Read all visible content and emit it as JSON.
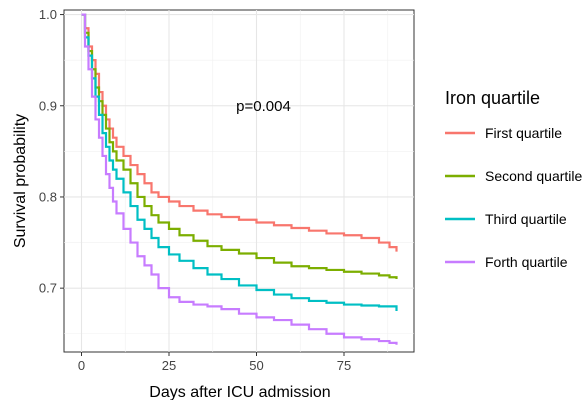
{
  "chart_data": {
    "type": "line",
    "step": true,
    "title": "",
    "xlabel": "Days after ICU admission",
    "ylabel": "Survival probability",
    "xlim": [
      -5,
      95
    ],
    "ylim": [
      0.63,
      1.005
    ],
    "x_ticks": [
      0,
      25,
      50,
      75
    ],
    "x_tick_labels": [
      "0",
      "25",
      "50",
      "75"
    ],
    "y_ticks": [
      0.7,
      0.8,
      0.9,
      1.0
    ],
    "y_tick_labels": [
      "0.7",
      "0.8",
      "0.9",
      "1.0"
    ],
    "grid": true,
    "annotation": "p=0.004",
    "annotation_at": {
      "x": 52,
      "y": 0.9
    },
    "legend": {
      "title": "Iron quartile",
      "position": "right"
    },
    "series": [
      {
        "name": "First quartile",
        "color": "#F8766D",
        "points": [
          [
            0,
            1.0
          ],
          [
            1,
            0.985
          ],
          [
            2,
            0.965
          ],
          [
            3,
            0.95
          ],
          [
            4,
            0.935
          ],
          [
            5,
            0.915
          ],
          [
            6,
            0.9
          ],
          [
            7,
            0.885
          ],
          [
            8,
            0.875
          ],
          [
            9,
            0.865
          ],
          [
            10,
            0.855
          ],
          [
            12,
            0.845
          ],
          [
            14,
            0.835
          ],
          [
            16,
            0.825
          ],
          [
            18,
            0.815
          ],
          [
            20,
            0.805
          ],
          [
            22,
            0.8
          ],
          [
            25,
            0.795
          ],
          [
            28,
            0.79
          ],
          [
            32,
            0.785
          ],
          [
            36,
            0.781
          ],
          [
            40,
            0.778
          ],
          [
            45,
            0.775
          ],
          [
            50,
            0.772
          ],
          [
            55,
            0.769
          ],
          [
            60,
            0.766
          ],
          [
            65,
            0.763
          ],
          [
            70,
            0.76
          ],
          [
            75,
            0.758
          ],
          [
            80,
            0.755
          ],
          [
            85,
            0.75
          ],
          [
            88,
            0.745
          ],
          [
            90,
            0.74
          ]
        ]
      },
      {
        "name": "Second quartile",
        "color": "#7CAE00",
        "points": [
          [
            0,
            1.0
          ],
          [
            1,
            0.98
          ],
          [
            2,
            0.96
          ],
          [
            3,
            0.94
          ],
          [
            4,
            0.92
          ],
          [
            5,
            0.905
          ],
          [
            6,
            0.89
          ],
          [
            7,
            0.875
          ],
          [
            8,
            0.86
          ],
          [
            9,
            0.85
          ],
          [
            10,
            0.84
          ],
          [
            12,
            0.83
          ],
          [
            14,
            0.815
          ],
          [
            16,
            0.8
          ],
          [
            18,
            0.79
          ],
          [
            20,
            0.78
          ],
          [
            22,
            0.772
          ],
          [
            25,
            0.765
          ],
          [
            28,
            0.758
          ],
          [
            32,
            0.752
          ],
          [
            36,
            0.746
          ],
          [
            40,
            0.742
          ],
          [
            45,
            0.738
          ],
          [
            50,
            0.733
          ],
          [
            55,
            0.728
          ],
          [
            60,
            0.724
          ],
          [
            65,
            0.722
          ],
          [
            70,
            0.72
          ],
          [
            75,
            0.718
          ],
          [
            80,
            0.716
          ],
          [
            85,
            0.714
          ],
          [
            88,
            0.712
          ],
          [
            90,
            0.71
          ]
        ]
      },
      {
        "name": "Third quartile",
        "color": "#00BFC4",
        "points": [
          [
            0,
            1.0
          ],
          [
            1,
            0.975
          ],
          [
            2,
            0.955
          ],
          [
            3,
            0.93
          ],
          [
            4,
            0.91
          ],
          [
            5,
            0.89
          ],
          [
            6,
            0.87
          ],
          [
            7,
            0.855
          ],
          [
            8,
            0.84
          ],
          [
            9,
            0.83
          ],
          [
            10,
            0.82
          ],
          [
            12,
            0.805
          ],
          [
            14,
            0.79
          ],
          [
            16,
            0.775
          ],
          [
            18,
            0.765
          ],
          [
            20,
            0.755
          ],
          [
            22,
            0.745
          ],
          [
            25,
            0.737
          ],
          [
            28,
            0.73
          ],
          [
            32,
            0.722
          ],
          [
            36,
            0.715
          ],
          [
            40,
            0.71
          ],
          [
            45,
            0.703
          ],
          [
            50,
            0.698
          ],
          [
            55,
            0.693
          ],
          [
            60,
            0.689
          ],
          [
            65,
            0.686
          ],
          [
            70,
            0.684
          ],
          [
            75,
            0.682
          ],
          [
            80,
            0.681
          ],
          [
            85,
            0.68
          ],
          [
            88,
            0.68
          ],
          [
            90,
            0.675
          ]
        ]
      },
      {
        "name": "Forth quartile",
        "color": "#C77CFF",
        "points": [
          [
            0,
            1.0
          ],
          [
            1,
            0.965
          ],
          [
            2,
            0.94
          ],
          [
            3,
            0.91
          ],
          [
            4,
            0.885
          ],
          [
            5,
            0.865
          ],
          [
            6,
            0.845
          ],
          [
            7,
            0.825
          ],
          [
            8,
            0.81
          ],
          [
            9,
            0.795
          ],
          [
            10,
            0.782
          ],
          [
            12,
            0.765
          ],
          [
            14,
            0.75
          ],
          [
            16,
            0.735
          ],
          [
            18,
            0.725
          ],
          [
            20,
            0.715
          ],
          [
            22,
            0.7
          ],
          [
            25,
            0.69
          ],
          [
            28,
            0.685
          ],
          [
            32,
            0.682
          ],
          [
            36,
            0.68
          ],
          [
            40,
            0.677
          ],
          [
            45,
            0.672
          ],
          [
            50,
            0.668
          ],
          [
            55,
            0.665
          ],
          [
            60,
            0.66
          ],
          [
            65,
            0.655
          ],
          [
            70,
            0.65
          ],
          [
            75,
            0.646
          ],
          [
            80,
            0.644
          ],
          [
            85,
            0.642
          ],
          [
            88,
            0.64
          ],
          [
            90,
            0.638
          ]
        ]
      }
    ]
  }
}
